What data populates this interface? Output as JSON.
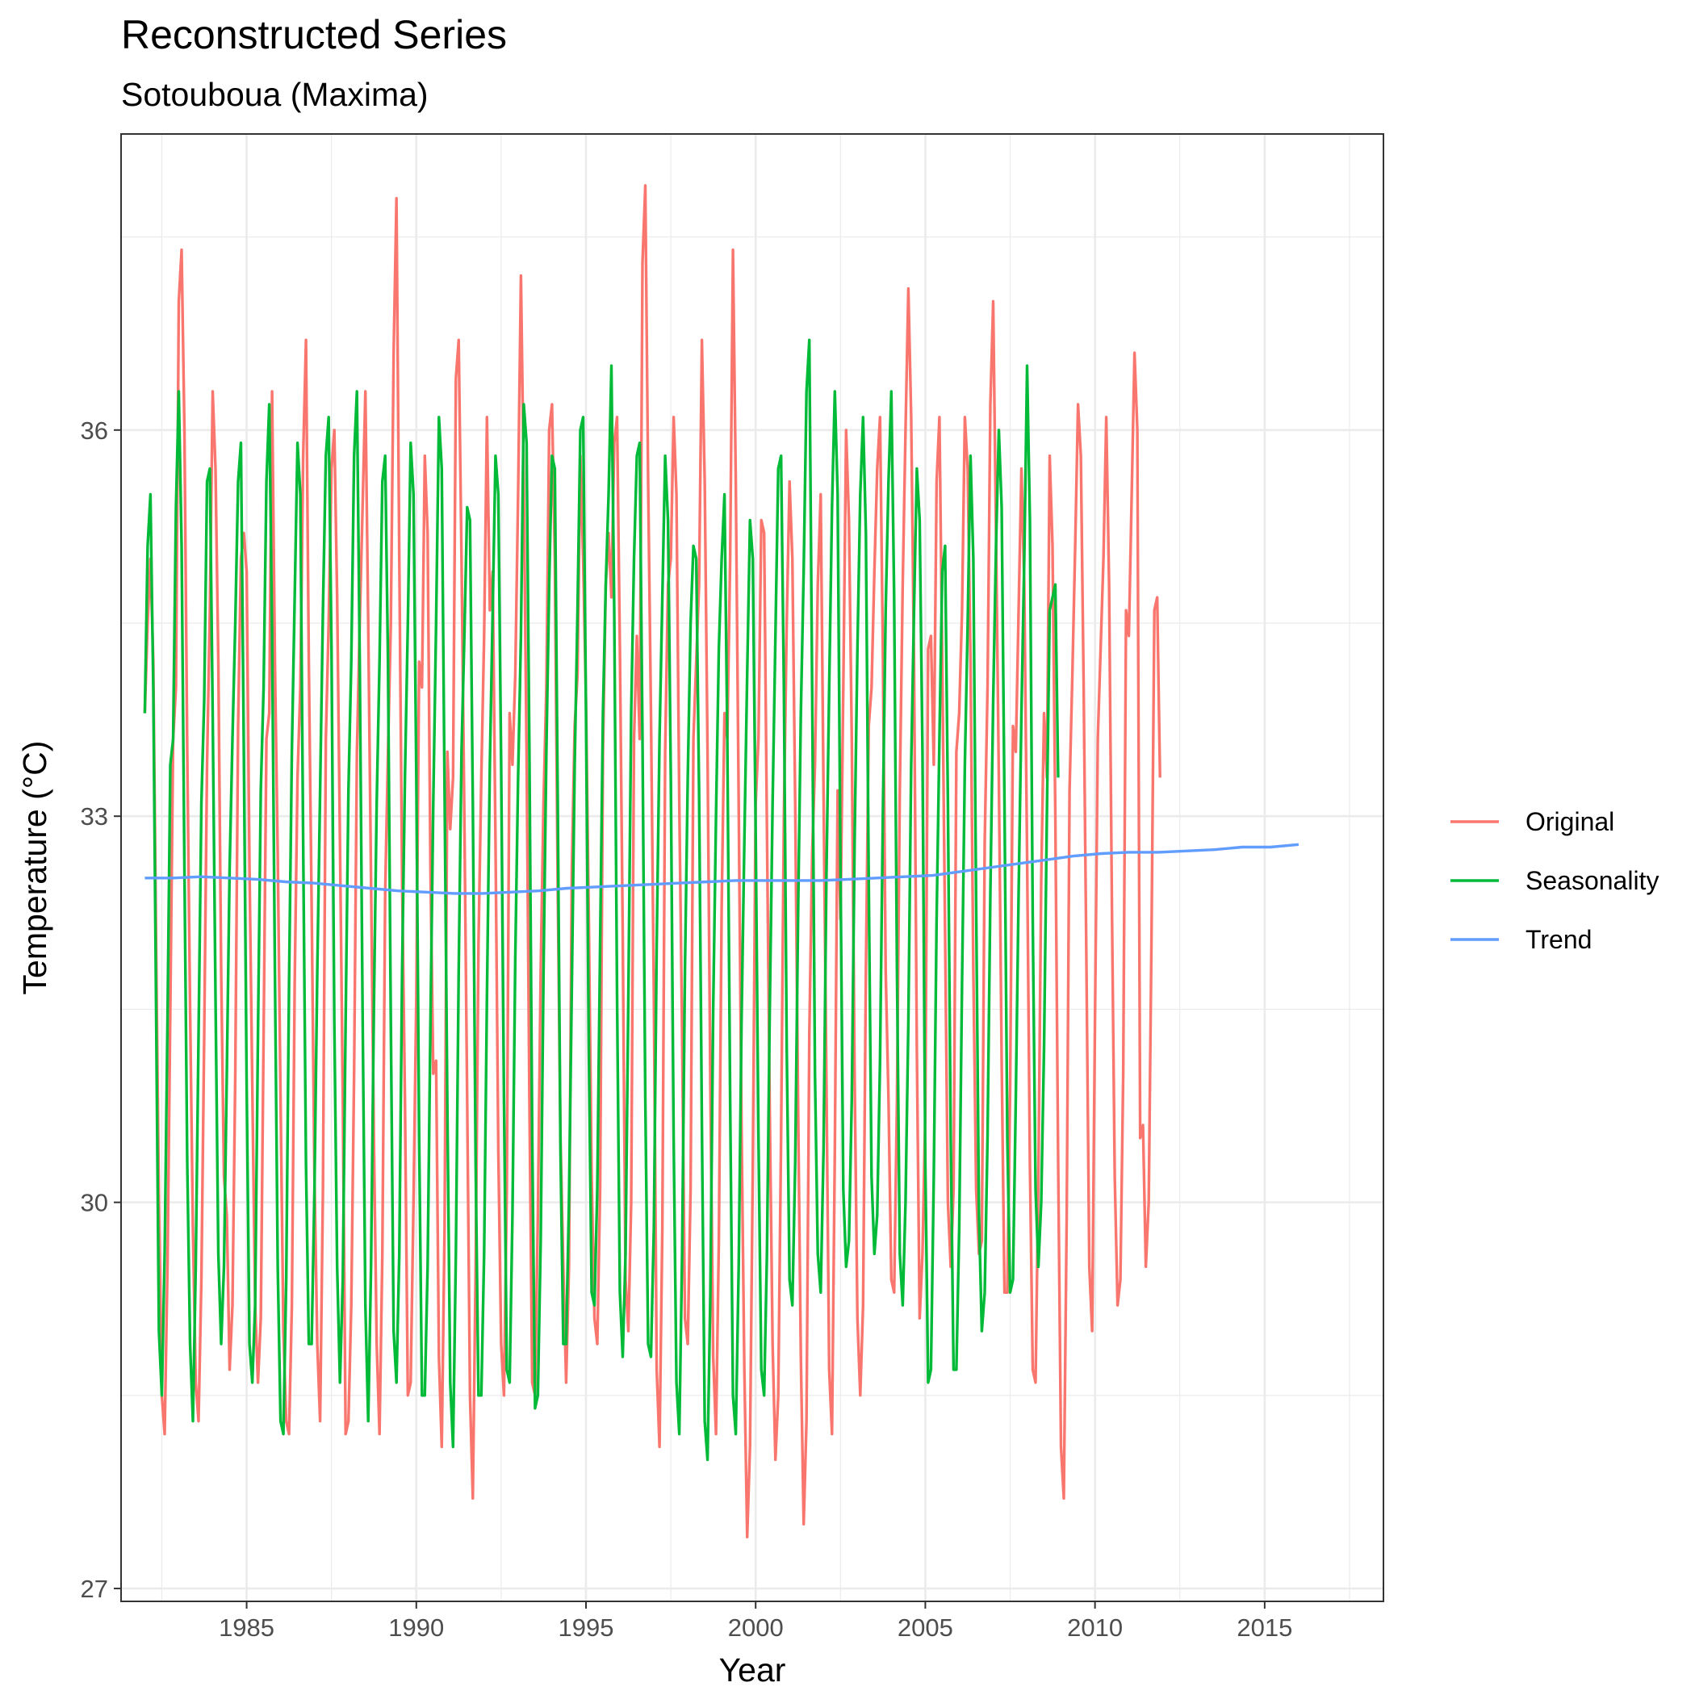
{
  "chart_data": {
    "type": "line",
    "title": "Reconstructed Series",
    "subtitle": "Sotouboua (Maxima)",
    "xlabel": "Year",
    "ylabel": "Temperature (°C)",
    "xlim": [
      1981.3,
      2018.5
    ],
    "ylim": [
      26.9,
      38.3
    ],
    "x_ticks": [
      1985,
      1990,
      1995,
      2000,
      2005,
      2010,
      2015
    ],
    "x_tick_labels": [
      "1985",
      "1990",
      "1995",
      "2000",
      "2005",
      "2010",
      "2015"
    ],
    "y_ticks": [
      27,
      30,
      33,
      36
    ],
    "y_tick_labels": [
      "27",
      "30",
      "33",
      "36"
    ],
    "grid": true,
    "legend_position": "right",
    "legend": [
      "Original",
      "Seasonality",
      "Trend"
    ],
    "x_start": 1982.0,
    "x_step": 0.08333,
    "series": [
      {
        "name": "Original",
        "color": "#F8766D",
        "values": [
          33.8,
          34.5,
          35.0,
          34.2,
          32.0,
          30.0,
          28.5,
          28.2,
          29.5,
          31.5,
          33.6,
          34.0,
          37.0,
          37.4,
          36.0,
          33.5,
          31.5,
          29.8,
          28.6,
          28.3,
          29.4,
          31.3,
          33.4,
          34.6,
          36.3,
          35.7,
          34.2,
          31.8,
          30.2,
          29.9,
          28.7,
          29.2,
          31.0,
          33.7,
          35.0,
          35.2,
          34.9,
          32.6,
          30.9,
          29.2,
          28.6,
          29.1,
          31.3,
          33.6,
          33.8,
          36.3,
          34.2,
          32.7,
          30.8,
          29.0,
          28.3,
          28.2,
          29.2,
          31.7,
          33.3,
          34.0,
          35.8,
          36.7,
          34.2,
          32.3,
          30.2,
          28.9,
          28.3,
          30.1,
          33.6,
          34.5,
          35.7,
          36.0,
          34.7,
          32.8,
          30.8,
          28.2,
          28.3,
          29.2,
          31.0,
          33.5,
          34.5,
          35.4,
          36.3,
          34.5,
          32.5,
          30.5,
          28.9,
          28.2,
          29.6,
          32.4,
          33.5,
          34.5,
          36.6,
          37.8,
          35.0,
          32.5,
          30.8,
          28.5,
          28.6,
          30.0,
          31.6,
          34.2,
          34.0,
          35.8,
          35.2,
          32.6,
          31.0,
          31.1,
          28.8,
          28.1,
          29.8,
          33.5,
          32.9,
          33.3,
          36.4,
          36.7,
          35.0,
          33.0,
          30.8,
          28.5,
          27.7,
          29.5,
          32.0,
          33.3,
          34.4,
          36.1,
          34.6,
          34.9,
          32.8,
          30.4,
          28.9,
          28.5,
          30.1,
          33.8,
          33.4,
          34.1,
          35.5,
          37.2,
          35.6,
          33.5,
          30.8,
          28.6,
          28.5,
          29.9,
          31.8,
          33.1,
          34.0,
          36.0,
          36.2,
          35.0,
          32.5,
          30.5,
          29.5,
          28.6,
          29.5,
          32.6,
          33.7,
          34.1,
          35.8,
          35.0,
          33.9,
          32.2,
          30.2,
          29.1,
          28.9,
          30.1,
          33.5,
          34.8,
          35.2,
          34.7,
          35.9,
          36.1,
          34.3,
          32.1,
          29.4,
          29.0,
          30.0,
          33.6,
          34.4,
          33.6,
          37.3,
          37.9,
          35.6,
          33.8,
          31.6,
          28.7,
          28.1,
          29.8,
          33.5,
          34.8,
          35.0,
          36.1,
          35.5,
          33.1,
          31.3,
          29.1,
          28.9,
          30.1,
          33.6,
          34.2,
          34.8,
          36.7,
          35.6,
          33.5,
          30.9,
          28.8,
          28.2,
          29.7,
          32.3,
          33.8,
          33.6,
          35.0,
          37.4,
          35.6,
          33.1,
          30.6,
          28.7,
          27.4,
          28.1,
          30.3,
          33.1,
          33.6,
          35.3,
          35.2,
          32.9,
          30.7,
          28.9,
          28.0,
          28.5,
          30.5,
          33.0,
          34.5,
          35.6,
          35.0,
          33.1,
          30.8,
          28.8,
          27.5,
          28.3,
          31.3,
          32.7,
          33.4,
          34.8,
          35.5,
          33.2,
          31.0,
          28.7,
          28.2,
          30.4,
          33.2,
          32.2,
          34.0,
          36.0,
          35.3,
          33.6,
          31.0,
          29.1,
          28.5,
          29.2,
          31.8,
          33.7,
          34.0,
          34.9,
          35.7,
          36.1,
          34.3,
          31.8,
          30.8,
          29.4,
          29.3,
          30.8,
          33.2,
          34.8,
          36.0,
          37.1,
          36.1,
          34.2,
          31.2,
          29.1,
          29.6,
          30.7,
          34.3,
          34.4,
          33.4,
          35.6,
          36.1,
          34.2,
          32.1,
          30.0,
          29.5,
          30.1,
          33.5,
          33.8,
          34.6,
          36.1,
          35.7,
          34.2,
          31.8,
          30.1,
          29.6,
          29.7,
          32.8,
          34.0,
          36.2,
          37.0,
          35.2,
          33.3,
          31.1,
          29.3,
          29.3,
          30.9,
          33.7,
          33.5,
          34.6,
          35.7,
          34.8,
          32.7,
          30.3,
          28.7,
          28.6,
          30.2,
          32.5,
          33.8,
          33.3,
          35.8,
          35.1,
          33.0,
          30.3,
          28.1,
          27.7,
          29.9,
          33.2,
          34.1,
          35.1,
          36.2,
          35.8,
          34.0,
          31.8,
          29.5,
          29.0,
          31.4,
          33.6,
          34.3,
          35.0,
          36.1,
          34.8,
          32.3,
          30.2,
          29.2,
          29.4,
          31.0,
          34.6,
          34.4,
          35.5,
          36.6,
          36.0,
          30.5,
          30.6,
          29.5,
          30.0,
          32.1,
          34.6,
          34.7,
          33.3
        ]
      },
      {
        "name": "Seasonality",
        "color": "#00BA38",
        "values": [
          33.8,
          35.1,
          35.5,
          34.0,
          31.5,
          29.0,
          28.5,
          29.6,
          31.4,
          33.4,
          33.6,
          35.4,
          36.3,
          35.1,
          32.6,
          30.3,
          28.9,
          28.3,
          29.5,
          31.3,
          33.1,
          33.9,
          35.6,
          35.7,
          33.8,
          31.6,
          29.6,
          28.9,
          29.5,
          31.0,
          32.6,
          33.6,
          34.5,
          35.6,
          35.9,
          33.5,
          30.9,
          28.9,
          28.6,
          29.2,
          31.3,
          33.2,
          34.0,
          35.6,
          36.2,
          34.4,
          31.8,
          29.5,
          28.3,
          28.2,
          29.4,
          31.7,
          33.5,
          34.7,
          35.9,
          35.5,
          32.8,
          30.3,
          28.9,
          28.9,
          30.1,
          31.8,
          33.2,
          34.6,
          35.8,
          36.1,
          34.3,
          31.4,
          29.5,
          28.6,
          29.4,
          31.4,
          33.2,
          34.2,
          35.8,
          36.3,
          34.2,
          31.5,
          29.2,
          28.3,
          29.5,
          31.5,
          33.1,
          34.2,
          35.6,
          35.8,
          34.2,
          31.4,
          29.0,
          28.6,
          29.6,
          31.8,
          33.3,
          34.5,
          35.9,
          35.5,
          33.3,
          30.5,
          28.5,
          28.5,
          29.5,
          31.4,
          33.1,
          34.5,
          36.1,
          35.7,
          33.2,
          30.7,
          28.6,
          28.1,
          29.6,
          31.8,
          33.5,
          34.4,
          35.4,
          35.3,
          33.1,
          30.3,
          28.5,
          28.5,
          29.6,
          31.6,
          33.4,
          34.6,
          35.8,
          35.5,
          33.4,
          30.8,
          28.7,
          28.6,
          29.9,
          31.9,
          33.3,
          34.4,
          36.2,
          35.9,
          33.5,
          30.5,
          28.4,
          28.5,
          29.7,
          31.8,
          33.5,
          34.8,
          35.8,
          35.7,
          33.2,
          30.4,
          28.9,
          28.9,
          30.0,
          31.7,
          33.4,
          34.6,
          36.0,
          36.1,
          33.8,
          31.2,
          29.3,
          29.2,
          30.1,
          32.0,
          33.8,
          34.8,
          35.5,
          36.5,
          34.6,
          31.6,
          29.3,
          28.8,
          29.6,
          31.6,
          33.8,
          35.0,
          35.8,
          35.9,
          33.6,
          30.8,
          28.9,
          28.8,
          29.8,
          32.0,
          33.6,
          34.7,
          35.8,
          35.3,
          33.3,
          30.5,
          28.6,
          28.2,
          29.6,
          31.8,
          33.3,
          34.5,
          35.1,
          35.0,
          33.2,
          30.6,
          28.3,
          28.0,
          29.3,
          31.5,
          33.0,
          34.3,
          35.0,
          35.5,
          33.6,
          30.8,
          28.5,
          28.2,
          29.5,
          31.4,
          32.8,
          34.1,
          35.3,
          35.0,
          32.9,
          30.5,
          28.7,
          28.5,
          29.6,
          31.5,
          33.1,
          34.4,
          35.7,
          35.8,
          34.0,
          31.2,
          29.4,
          29.2,
          30.3,
          32.2,
          33.8,
          34.9,
          36.3,
          36.7,
          34.0,
          31.0,
          29.6,
          29.3,
          30.4,
          32.5,
          34.0,
          35.4,
          36.3,
          35.5,
          32.6,
          30.1,
          29.5,
          29.7,
          30.8,
          32.8,
          34.3,
          35.5,
          36.1,
          35.2,
          32.5,
          30.2,
          29.6,
          29.9,
          31.1,
          33.0,
          34.6,
          35.6,
          36.3,
          34.7,
          31.8,
          29.6,
          29.2,
          30.0,
          31.4,
          33.4,
          34.6,
          35.7,
          35.3,
          33.5,
          30.3,
          28.6,
          28.7,
          30.2,
          32.2,
          33.6,
          34.9,
          35.1,
          33.1,
          30.5,
          28.7,
          28.7,
          29.8,
          31.7,
          33.4,
          34.5,
          35.8,
          35.0,
          32.3,
          29.9,
          29.0,
          29.3,
          30.5,
          32.4,
          33.9,
          35.1,
          36.0,
          35.4,
          33.1,
          30.5,
          29.3,
          29.4,
          30.8,
          32.4,
          33.8,
          35.0,
          36.5,
          35.3,
          32.2,
          30.1,
          29.5,
          30.0,
          31.2,
          33.0,
          34.6,
          34.7,
          34.8,
          33.3
        ]
      },
      {
        "name": "Trend",
        "color": "#619CFF",
        "values": [
          32.52,
          32.52,
          32.53,
          32.52,
          32.51,
          32.49,
          32.48,
          32.46,
          32.44,
          32.42,
          32.41,
          32.4,
          32.4,
          32.41,
          32.42,
          32.44,
          32.45,
          32.46,
          32.47,
          32.48,
          32.49,
          32.5,
          32.5,
          32.5,
          32.5,
          32.51,
          32.52,
          32.53,
          32.54,
          32.57,
          32.6,
          32.63,
          32.66,
          32.69,
          32.71,
          32.72,
          32.72,
          32.73,
          32.74,
          32.76,
          32.76,
          32.78
        ]
      }
    ]
  }
}
